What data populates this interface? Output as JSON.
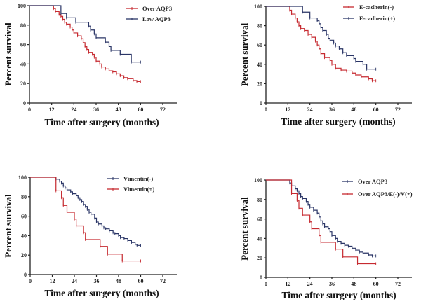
{
  "colors": {
    "red": "#c62a30",
    "blue": "#2a3566",
    "axis": "#222222"
  },
  "chart_data": [
    {
      "type": "line",
      "subtype": "kaplan-meier step",
      "xlabel": "Time after surgery (months)",
      "ylabel": "Percent survival",
      "xticks": [
        0,
        12,
        24,
        36,
        48,
        60,
        72
      ],
      "yticks": [
        0,
        20,
        40,
        60,
        80,
        100
      ],
      "xlim": [
        0,
        78
      ],
      "ylim": [
        0,
        100
      ],
      "legend_position": "top-right",
      "series": [
        {
          "name": "Over AQP3",
          "color": "red",
          "points": [
            [
              0,
              100
            ],
            [
              13,
              97
            ],
            [
              14,
              94
            ],
            [
              16,
              91
            ],
            [
              17,
              89
            ],
            [
              18,
              86
            ],
            [
              19,
              83
            ],
            [
              20,
              81
            ],
            [
              22,
              78
            ],
            [
              23,
              75
            ],
            [
              24,
              72
            ],
            [
              26,
              69
            ],
            [
              28,
              66
            ],
            [
              29,
              62
            ],
            [
              30,
              58
            ],
            [
              31,
              55
            ],
            [
              32,
              52
            ],
            [
              34,
              50
            ],
            [
              35,
              47
            ],
            [
              36,
              43
            ],
            [
              38,
              40
            ],
            [
              39,
              37
            ],
            [
              41,
              35
            ],
            [
              43,
              33
            ],
            [
              45,
              32
            ],
            [
              47,
              30
            ],
            [
              49,
              28
            ],
            [
              51,
              26
            ],
            [
              53,
              25
            ],
            [
              56,
              23
            ],
            [
              58,
              22
            ],
            [
              60,
              22
            ]
          ]
        },
        {
          "name": "Low AQP3",
          "color": "blue",
          "points": [
            [
              0,
              100
            ],
            [
              17,
              92
            ],
            [
              20,
              87.5
            ],
            [
              25,
              83
            ],
            [
              32,
              79
            ],
            [
              33,
              75
            ],
            [
              35,
              71
            ],
            [
              36,
              67
            ],
            [
              41,
              62.5
            ],
            [
              43,
              58
            ],
            [
              44,
              54
            ],
            [
              49,
              50
            ],
            [
              55,
              42
            ],
            [
              60,
              42
            ]
          ]
        }
      ]
    },
    {
      "type": "line",
      "subtype": "kaplan-meier step",
      "xlabel": "Time after surgery (months)",
      "ylabel": "Percent survival",
      "xticks": [
        0,
        12,
        24,
        36,
        48,
        60,
        72
      ],
      "yticks": [
        0,
        20,
        40,
        60,
        80,
        100
      ],
      "xlim": [
        0,
        78
      ],
      "ylim": [
        0,
        100
      ],
      "legend_position": "top-right",
      "series": [
        {
          "name": "E-cadherin(-)",
          "color": "red",
          "points": [
            [
              0,
              100
            ],
            [
              13,
              96
            ],
            [
              14,
              92
            ],
            [
              16,
              88
            ],
            [
              17,
              84
            ],
            [
              18,
              80
            ],
            [
              19,
              77
            ],
            [
              21,
              75
            ],
            [
              23,
              71
            ],
            [
              25,
              68
            ],
            [
              27,
              64
            ],
            [
              28,
              60
            ],
            [
              29,
              56
            ],
            [
              30,
              51
            ],
            [
              32,
              47
            ],
            [
              35,
              44
            ],
            [
              36,
              40
            ],
            [
              38,
              36
            ],
            [
              41,
              34
            ],
            [
              44,
              33
            ],
            [
              47,
              31
            ],
            [
              49,
              29
            ],
            [
              52,
              27
            ],
            [
              56,
              25
            ],
            [
              58,
              23
            ],
            [
              60,
              23
            ]
          ]
        },
        {
          "name": "E-cadherin(+)",
          "color": "blue",
          "points": [
            [
              0,
              100
            ],
            [
              20,
              94
            ],
            [
              24,
              88
            ],
            [
              28,
              85
            ],
            [
              29,
              82
            ],
            [
              30,
              78
            ],
            [
              31,
              75
            ],
            [
              33,
              71
            ],
            [
              34,
              67
            ],
            [
              35,
              65
            ],
            [
              37,
              62
            ],
            [
              38,
              59
            ],
            [
              40,
              56
            ],
            [
              42,
              52
            ],
            [
              44,
              49
            ],
            [
              48,
              46
            ],
            [
              49,
              43
            ],
            [
              53,
              40
            ],
            [
              55,
              35
            ],
            [
              60,
              35
            ]
          ]
        }
      ]
    },
    {
      "type": "line",
      "subtype": "kaplan-meier step",
      "xlabel": "Time after surgery (months)",
      "ylabel": "Percent survival",
      "xticks": [
        0,
        12,
        24,
        36,
        48,
        60,
        72
      ],
      "yticks": [
        0,
        20,
        40,
        60,
        80,
        100
      ],
      "xlim": [
        0,
        78
      ],
      "ylim": [
        0,
        100
      ],
      "legend_position": "top-right",
      "series": [
        {
          "name": "Vimentin(-)",
          "color": "blue",
          "points": [
            [
              0,
              100
            ],
            [
              14,
              98
            ],
            [
              16,
              96
            ],
            [
              17,
              94
            ],
            [
              18,
              91
            ],
            [
              19,
              89
            ],
            [
              20,
              87
            ],
            [
              22,
              85
            ],
            [
              23,
              83
            ],
            [
              25,
              81
            ],
            [
              26,
              79
            ],
            [
              27,
              77
            ],
            [
              28,
              75
            ],
            [
              29,
              72
            ],
            [
              30,
              70
            ],
            [
              31,
              67
            ],
            [
              32,
              64
            ],
            [
              33,
              62
            ],
            [
              35,
              58
            ],
            [
              36,
              54
            ],
            [
              37,
              52
            ],
            [
              39,
              50
            ],
            [
              40,
              48
            ],
            [
              41,
              47
            ],
            [
              43,
              45
            ],
            [
              45,
              43
            ],
            [
              46,
              42
            ],
            [
              48,
              40
            ],
            [
              49,
              38
            ],
            [
              51,
              37
            ],
            [
              53,
              35
            ],
            [
              55,
              33
            ],
            [
              57,
              31
            ],
            [
              58,
              30
            ],
            [
              60,
              30
            ]
          ]
        },
        {
          "name": "Vimentin(+)",
          "color": "red",
          "points": [
            [
              0,
              100
            ],
            [
              14,
              86
            ],
            [
              17,
              79
            ],
            [
              18,
              71
            ],
            [
              20,
              64
            ],
            [
              24,
              57
            ],
            [
              25,
              50
            ],
            [
              29,
              43
            ],
            [
              30,
              36
            ],
            [
              38,
              29
            ],
            [
              42,
              21
            ],
            [
              50,
              14
            ],
            [
              60,
              14
            ]
          ]
        }
      ]
    },
    {
      "type": "line",
      "subtype": "kaplan-meier step",
      "xlabel": "Time after surgery (months)",
      "ylabel": "Percent survival",
      "xticks": [
        0,
        12,
        24,
        36,
        48,
        60,
        72
      ],
      "yticks": [
        0,
        20,
        40,
        60,
        80,
        100
      ],
      "xlim": [
        0,
        78
      ],
      "ylim": [
        0,
        100
      ],
      "legend_position": "top-right",
      "series": [
        {
          "name": "Over AQP3",
          "color": "blue",
          "points": [
            [
              0,
              100
            ],
            [
              13,
              97
            ],
            [
              14,
              94
            ],
            [
              16,
              91
            ],
            [
              17,
              89
            ],
            [
              18,
              86
            ],
            [
              19,
              83
            ],
            [
              20,
              81
            ],
            [
              22,
              78
            ],
            [
              23,
              75
            ],
            [
              24,
              72
            ],
            [
              26,
              69
            ],
            [
              28,
              66
            ],
            [
              29,
              62
            ],
            [
              30,
              58
            ],
            [
              31,
              55
            ],
            [
              32,
              52
            ],
            [
              34,
              50
            ],
            [
              35,
              47
            ],
            [
              36,
              43
            ],
            [
              38,
              40
            ],
            [
              39,
              37
            ],
            [
              41,
              35
            ],
            [
              43,
              33
            ],
            [
              45,
              32
            ],
            [
              47,
              30
            ],
            [
              49,
              28
            ],
            [
              51,
              26
            ],
            [
              53,
              25
            ],
            [
              56,
              23
            ],
            [
              58,
              22
            ],
            [
              60,
              22
            ]
          ]
        },
        {
          "name": "Over AQP3/E(-)/V(+)",
          "color": "red",
          "points": [
            [
              0,
              100
            ],
            [
              14,
              86
            ],
            [
              17,
              79
            ],
            [
              18,
              71
            ],
            [
              20,
              64
            ],
            [
              24,
              57
            ],
            [
              25,
              50
            ],
            [
              29,
              43
            ],
            [
              30,
              36
            ],
            [
              38,
              29
            ],
            [
              42,
              21
            ],
            [
              50,
              14
            ],
            [
              60,
              14
            ]
          ]
        }
      ]
    }
  ]
}
